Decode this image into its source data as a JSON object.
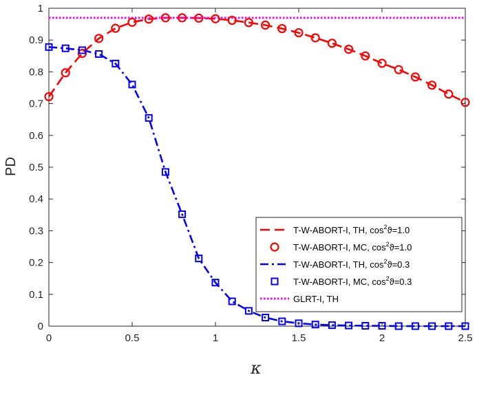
{
  "chart_data": {
    "type": "line",
    "xlabel": "κ",
    "ylabel": "PD",
    "xlim": [
      0,
      2.5
    ],
    "ylim": [
      0,
      1
    ],
    "xticks": [
      0,
      0.5,
      1,
      1.5,
      2,
      2.5
    ],
    "xtick_labels": [
      "0",
      "0.5",
      "1",
      "1.5",
      "2",
      "2.5"
    ],
    "yticks": [
      0,
      0.1,
      0.2,
      0.3,
      0.4,
      0.5,
      0.6,
      0.7,
      0.8,
      0.9,
      1
    ],
    "ytick_labels": [
      "0",
      "0.1",
      "0.2",
      "0.3",
      "0.4",
      "0.5",
      "0.6",
      "0.7",
      "0.8",
      "0.9",
      "1"
    ],
    "grid": false,
    "legend_position": "bottom-right",
    "x": [
      0,
      0.1,
      0.2,
      0.3,
      0.4,
      0.5,
      0.6,
      0.7,
      0.8,
      0.9,
      1.0,
      1.1,
      1.2,
      1.3,
      1.4,
      1.5,
      1.6,
      1.7,
      1.8,
      1.9,
      2.0,
      2.1,
      2.2,
      2.3,
      2.4,
      2.5
    ],
    "series": [
      {
        "name": "T-W-ABORT-I, TH, cos",
        "name_sup": "2",
        "name_tail": "ϑ=1.0",
        "style": "dashed",
        "color": "#ff0000",
        "marker": "none",
        "values": [
          0.722,
          0.797,
          0.858,
          0.905,
          0.937,
          0.956,
          0.966,
          0.97,
          0.97,
          0.969,
          0.967,
          0.962,
          0.955,
          0.947,
          0.936,
          0.923,
          0.907,
          0.89,
          0.871,
          0.85,
          0.827,
          0.807,
          0.784,
          0.758,
          0.73,
          0.704
        ]
      },
      {
        "name": "T-W-ABORT-I, MC, cos",
        "name_sup": "2",
        "name_tail": "ϑ=1.0",
        "style": "none",
        "color": "#ff0000",
        "marker": "circle",
        "values": [
          0.722,
          0.797,
          0.858,
          0.905,
          0.937,
          0.956,
          0.966,
          0.97,
          0.97,
          0.969,
          0.967,
          0.962,
          0.955,
          0.947,
          0.936,
          0.923,
          0.907,
          0.89,
          0.871,
          0.85,
          0.827,
          0.807,
          0.784,
          0.758,
          0.73,
          0.704
        ]
      },
      {
        "name": "T-W-ABORT-I, TH, cos",
        "name_sup": "2",
        "name_tail": "ϑ=0.3",
        "style": "dashdot",
        "color": "#0000ff",
        "marker": "none",
        "values": [
          0.878,
          0.874,
          0.868,
          0.856,
          0.826,
          0.76,
          0.655,
          0.485,
          0.352,
          0.213,
          0.137,
          0.078,
          0.048,
          0.027,
          0.015,
          0.009,
          0.005,
          0.003,
          0.002,
          0.001,
          0.001,
          0.0,
          0.0,
          0.0,
          0.0,
          0.0
        ]
      },
      {
        "name": "T-W-ABORT-I, MC, cos",
        "name_sup": "2",
        "name_tail": "ϑ=0.3",
        "style": "none",
        "color": "#0000ff",
        "marker": "square",
        "values": [
          0.878,
          0.874,
          0.868,
          0.856,
          0.826,
          0.76,
          0.655,
          0.485,
          0.352,
          0.213,
          0.137,
          0.078,
          0.048,
          0.027,
          0.015,
          0.009,
          0.005,
          0.003,
          0.002,
          0.001,
          0.001,
          0.0,
          0.0,
          0.0,
          0.0,
          0.0
        ]
      },
      {
        "name": "GLRT-I, TH",
        "name_sup": "",
        "name_tail": "",
        "style": "dotted",
        "color": "#ff00ff",
        "marker": "none",
        "values": [
          0.97,
          0.97,
          0.97,
          0.97,
          0.97,
          0.97,
          0.97,
          0.97,
          0.97,
          0.97,
          0.97,
          0.97,
          0.97,
          0.97,
          0.97,
          0.97,
          0.97,
          0.97,
          0.97,
          0.97,
          0.97,
          0.97,
          0.97,
          0.97,
          0.97,
          0.97
        ]
      }
    ]
  }
}
